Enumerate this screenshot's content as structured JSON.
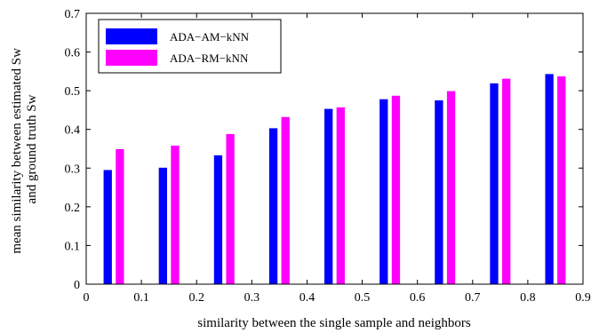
{
  "chart_data": {
    "type": "bar",
    "title": "",
    "xlabel": "similarity between the single sample and neighbors",
    "ylabel": [
      "mean similarity between estimated Sw",
      "and ground truth Sw"
    ],
    "xlim": [
      0,
      0.9
    ],
    "ylim": [
      0,
      0.7
    ],
    "x_ticks": [
      "0",
      "0.1",
      "0.2",
      "0.3",
      "0.4",
      "0.5",
      "0.6",
      "0.7",
      "0.8",
      "0.9"
    ],
    "y_ticks": [
      "0",
      "0.1",
      "0.2",
      "0.3",
      "0.4",
      "0.5",
      "0.6",
      "0.7"
    ],
    "x": [
      0.05,
      0.15,
      0.25,
      0.35,
      0.45,
      0.55,
      0.65,
      0.75,
      0.85
    ],
    "series": [
      {
        "name": "ADA−AM−kNN",
        "color": "#0000ff",
        "values": [
          0.295,
          0.301,
          0.333,
          0.403,
          0.453,
          0.478,
          0.475,
          0.519,
          0.543
        ]
      },
      {
        "name": "ADA−RM−kNN",
        "color": "#ff00ff",
        "values": [
          0.349,
          0.358,
          0.388,
          0.432,
          0.457,
          0.487,
          0.499,
          0.531,
          0.537
        ]
      }
    ],
    "legend_position": "top-left",
    "grid": false
  }
}
